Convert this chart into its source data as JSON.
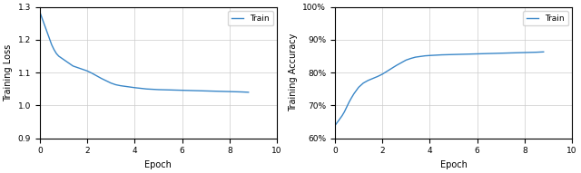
{
  "loss_epochs": [
    0,
    0.1,
    0.2,
    0.3,
    0.4,
    0.5,
    0.6,
    0.7,
    0.8,
    0.9,
    1.0,
    1.2,
    1.4,
    1.6,
    1.8,
    2.0,
    2.2,
    2.4,
    2.6,
    2.8,
    3.0,
    3.2,
    3.4,
    3.6,
    3.8,
    4.0,
    4.5,
    5.0,
    5.5,
    6.0,
    6.5,
    7.0,
    7.5,
    8.0,
    8.5,
    8.8
  ],
  "loss_values": [
    1.285,
    1.265,
    1.245,
    1.225,
    1.205,
    1.185,
    1.17,
    1.158,
    1.15,
    1.145,
    1.14,
    1.13,
    1.12,
    1.115,
    1.11,
    1.105,
    1.098,
    1.09,
    1.082,
    1.075,
    1.068,
    1.063,
    1.06,
    1.058,
    1.056,
    1.054,
    1.05,
    1.048,
    1.047,
    1.046,
    1.045,
    1.044,
    1.043,
    1.042,
    1.041,
    1.04
  ],
  "acc_epochs": [
    0,
    0.1,
    0.2,
    0.3,
    0.4,
    0.5,
    0.6,
    0.7,
    0.8,
    0.9,
    1.0,
    1.2,
    1.4,
    1.6,
    1.8,
    2.0,
    2.2,
    2.4,
    2.6,
    2.8,
    3.0,
    3.2,
    3.4,
    3.6,
    3.8,
    4.0,
    4.5,
    5.0,
    5.5,
    6.0,
    6.5,
    7.0,
    7.5,
    8.0,
    8.5,
    8.8
  ],
  "acc_values": [
    0.638,
    0.648,
    0.658,
    0.668,
    0.68,
    0.695,
    0.71,
    0.723,
    0.735,
    0.745,
    0.755,
    0.768,
    0.776,
    0.782,
    0.788,
    0.795,
    0.804,
    0.813,
    0.822,
    0.83,
    0.838,
    0.843,
    0.847,
    0.849,
    0.851,
    0.852,
    0.854,
    0.855,
    0.856,
    0.857,
    0.858,
    0.859,
    0.86,
    0.861,
    0.862,
    0.863
  ],
  "line_color": "#3a87c8",
  "loss_ylabel": "Training Loss",
  "acc_ylabel": "Training Accuracy",
  "xlabel": "Epoch",
  "legend_label": "Train",
  "loss_ylim": [
    0.9,
    1.3
  ],
  "loss_yticks": [
    0.9,
    1.0,
    1.1,
    1.2,
    1.3
  ],
  "acc_ylim": [
    0.6,
    1.0
  ],
  "acc_yticks": [
    0.6,
    0.7,
    0.8,
    0.9,
    1.0
  ],
  "xlim": [
    0,
    10
  ],
  "xticks": [
    0,
    2,
    4,
    6,
    8,
    10
  ]
}
